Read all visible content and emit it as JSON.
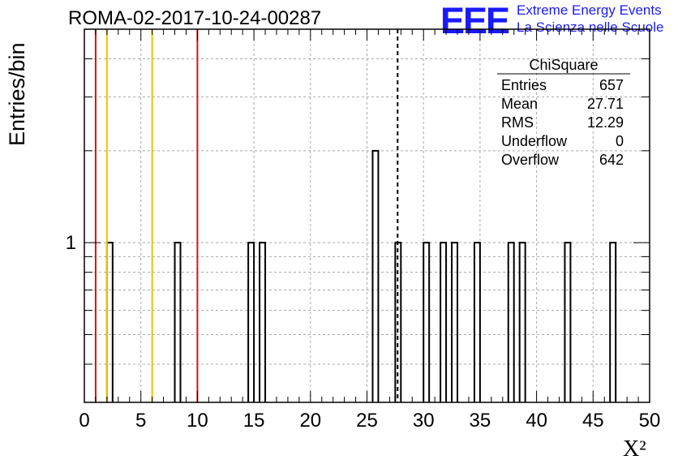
{
  "header": {
    "title": "ROMA-02-2017-10-24-00287",
    "logo_mark": "EEE",
    "logo_line1": "Extreme Energy Events",
    "logo_line2": "La Scienza nelle Scuole"
  },
  "colors": {
    "red_line": "#e01010",
    "yellow_line": "#f0c000",
    "logo_blue": "#1a1aff"
  },
  "stats": {
    "title": "ChiSquare",
    "rows": [
      {
        "label": "Entries",
        "value": "657"
      },
      {
        "label": "Mean",
        "value": "27.71"
      },
      {
        "label": "RMS",
        "value": "12.29"
      },
      {
        "label": "Underflow",
        "value": "0"
      },
      {
        "label": "Overflow",
        "value": "642"
      }
    ]
  },
  "chart_data": {
    "type": "bar",
    "title": "ROMA-02-2017-10-24-00287",
    "xlabel": "X²",
    "ylabel": "Entries/bin",
    "xlim": [
      0,
      50
    ],
    "y_scale": "log",
    "ylim": [
      0.3,
      5
    ],
    "grid": true,
    "bin_width": 0.5,
    "x_ticks": [
      0,
      5,
      10,
      15,
      20,
      25,
      30,
      35,
      40,
      45,
      50
    ],
    "y_tick_labels": [
      {
        "value": 1,
        "label": "1"
      }
    ],
    "bins": [
      {
        "x": 2.0,
        "value": 1
      },
      {
        "x": 8.0,
        "value": 1
      },
      {
        "x": 14.5,
        "value": 1
      },
      {
        "x": 15.5,
        "value": 1
      },
      {
        "x": 25.5,
        "value": 2
      },
      {
        "x": 27.5,
        "value": 1
      },
      {
        "x": 30.0,
        "value": 1
      },
      {
        "x": 31.5,
        "value": 1
      },
      {
        "x": 32.5,
        "value": 1
      },
      {
        "x": 34.5,
        "value": 1
      },
      {
        "x": 37.5,
        "value": 1
      },
      {
        "x": 38.5,
        "value": 1
      },
      {
        "x": 42.5,
        "value": 1
      },
      {
        "x": 46.5,
        "value": 1
      }
    ],
    "vertical_lines": [
      {
        "x": 1.0,
        "color": "red",
        "style": "solid"
      },
      {
        "x": 2.0,
        "color": "yellow",
        "style": "solid"
      },
      {
        "x": 6.0,
        "color": "yellow",
        "style": "solid"
      },
      {
        "x": 10.0,
        "color": "red",
        "style": "solid"
      },
      {
        "x": 27.71,
        "color": "black",
        "style": "dashed"
      }
    ]
  }
}
